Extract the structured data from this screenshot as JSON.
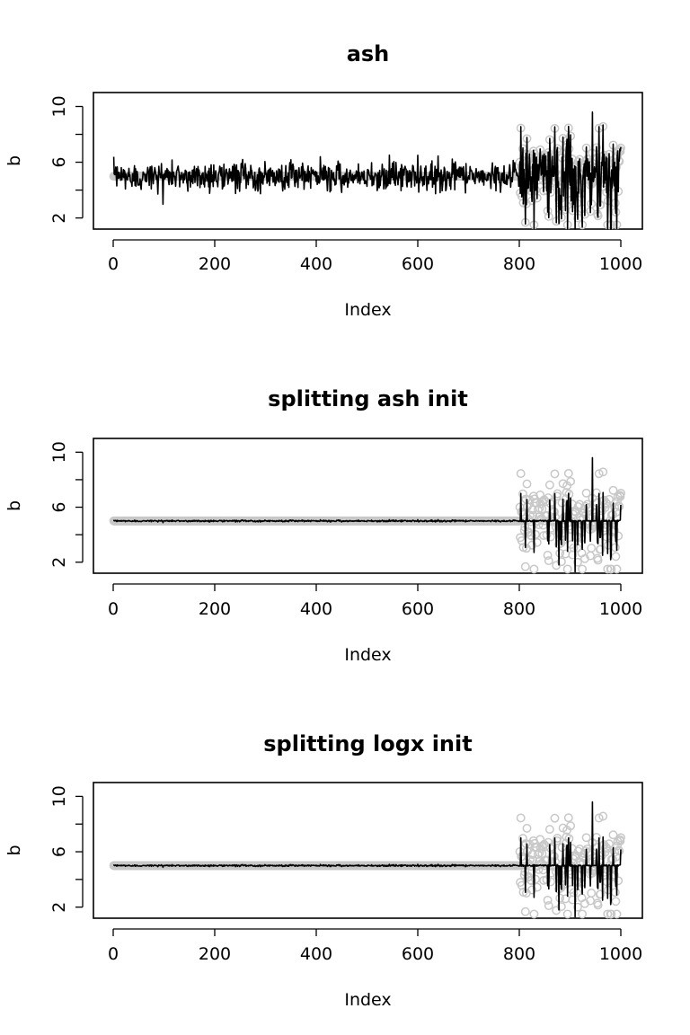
{
  "chart_data": [
    {
      "type": "line",
      "title": "ash",
      "xlabel": "Index",
      "ylabel": "b",
      "xlim": [
        0,
        1000
      ],
      "ylim": [
        1.2,
        11.0
      ],
      "xticks": [
        "0",
        "200",
        "400",
        "600",
        "800",
        "1000"
      ],
      "yticks": [
        "2",
        "6",
        "10"
      ],
      "series": [
        {
          "style": "points",
          "color": "#c8c8c8",
          "description_x": "Index 1-1000",
          "segments": [
            {
              "x_range": [
                1,
                800
              ],
              "mean": 5.0,
              "spread": 0.0
            },
            {
              "x_range": [
                801,
                1000
              ],
              "mean": 5.0,
              "spread": 1.55
            }
          ]
        },
        {
          "style": "line",
          "color": "#000000",
          "segments": [
            {
              "x_range": [
                1,
                800
              ],
              "mean": 5.0,
              "spread": 0.5
            },
            {
              "x_range": [
                801,
                1000
              ],
              "mean": 5.0,
              "spread": 1.6
            }
          ],
          "peaks": [
            {
              "x": 944,
              "y": 9.6
            },
            {
              "x": 910,
              "y": 1.2
            },
            {
              "x": 878,
              "y": 1.6
            }
          ]
        }
      ]
    },
    {
      "type": "line",
      "title": "splitting ash init",
      "xlabel": "Index",
      "ylabel": "b",
      "xlim": [
        0,
        1000
      ],
      "ylim": [
        1.2,
        11.0
      ],
      "xticks": [
        "0",
        "200",
        "400",
        "600",
        "800",
        "1000"
      ],
      "yticks": [
        "2",
        "6",
        "10"
      ],
      "series": [
        {
          "style": "points",
          "color": "#c8c8c8",
          "segments": [
            {
              "x_range": [
                1,
                800
              ],
              "mean": 5.0,
              "spread": 0.0
            },
            {
              "x_range": [
                801,
                1000
              ],
              "mean": 5.0,
              "spread": 1.55
            }
          ]
        },
        {
          "style": "line",
          "color": "#000000",
          "segments": [
            {
              "x_range": [
                1,
                800
              ],
              "mean": 5.0,
              "spread": 0.03
            },
            {
              "x_range": [
                801,
                1000
              ],
              "mean": 5.0,
              "spread": 0.15
            }
          ],
          "peaks": [
            {
              "x": 944,
              "y": 9.6
            },
            {
              "x": 910,
              "y": 1.3
            },
            {
              "x": 878,
              "y": 1.8
            },
            {
              "x": 964,
              "y": 2.5
            }
          ]
        }
      ]
    },
    {
      "type": "line",
      "title": "splitting logx init",
      "xlabel": "Index",
      "ylabel": "b",
      "xlim": [
        0,
        1000
      ],
      "ylim": [
        1.2,
        11.0
      ],
      "xticks": [
        "0",
        "200",
        "400",
        "600",
        "800",
        "1000"
      ],
      "yticks": [
        "2",
        "6",
        "10"
      ],
      "series": [
        {
          "style": "points",
          "color": "#c8c8c8",
          "segments": [
            {
              "x_range": [
                1,
                800
              ],
              "mean": 5.0,
              "spread": 0.0
            },
            {
              "x_range": [
                801,
                1000
              ],
              "mean": 5.0,
              "spread": 1.55
            }
          ]
        },
        {
          "style": "line",
          "color": "#000000",
          "segments": [
            {
              "x_range": [
                1,
                800
              ],
              "mean": 5.0,
              "spread": 0.03
            },
            {
              "x_range": [
                801,
                1000
              ],
              "mean": 5.0,
              "spread": 0.15
            }
          ],
          "peaks": [
            {
              "x": 944,
              "y": 9.6
            },
            {
              "x": 910,
              "y": 1.3
            },
            {
              "x": 878,
              "y": 1.8
            },
            {
              "x": 964,
              "y": 2.5
            }
          ]
        }
      ]
    }
  ]
}
